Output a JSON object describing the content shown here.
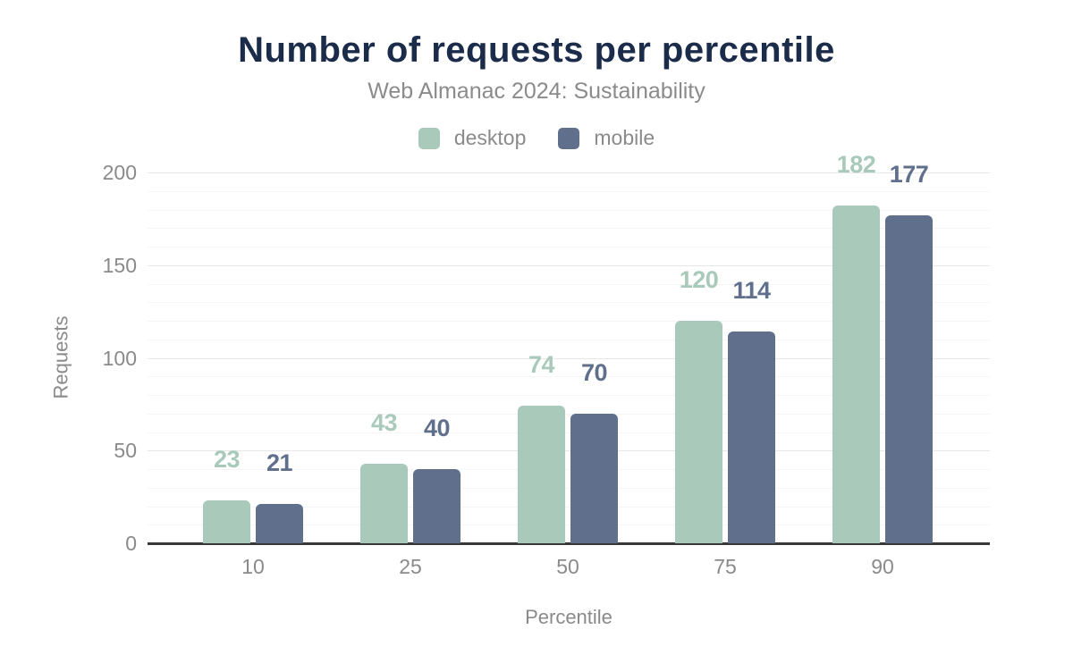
{
  "header": {
    "title": "Number of requests per percentile",
    "subtitle": "Web Almanac 2024: Sustainability"
  },
  "chart_data": {
    "type": "bar",
    "title": "Number of requests per percentile",
    "subtitle": "Web Almanac 2024: Sustainability",
    "categories": [
      "10",
      "25",
      "50",
      "75",
      "90"
    ],
    "series": [
      {
        "name": "desktop",
        "color": "#a9cabb",
        "values": [
          23,
          43,
          74,
          120,
          182
        ]
      },
      {
        "name": "mobile",
        "color": "#5f6f8c",
        "values": [
          21,
          40,
          70,
          114,
          177
        ]
      }
    ],
    "xlabel": "Percentile",
    "ylabel": "Requests",
    "ylim": [
      0,
      200
    ],
    "yticks": [
      0,
      50,
      100,
      150,
      200
    ],
    "grid": {
      "major_step": 50,
      "minor_step": 10,
      "minor_visible": true
    },
    "legend_position": "top",
    "data_labels": true
  },
  "colors": {
    "title": "#1b2b4a",
    "muted_text": "#8a8a8a",
    "axis_line": "#37383a",
    "gridline_major": "#e7e7e7",
    "gridline_minor": "#f5f5f5",
    "background": "#ffffff",
    "desktop": "#a9cabb",
    "mobile": "#5f6f8c"
  }
}
